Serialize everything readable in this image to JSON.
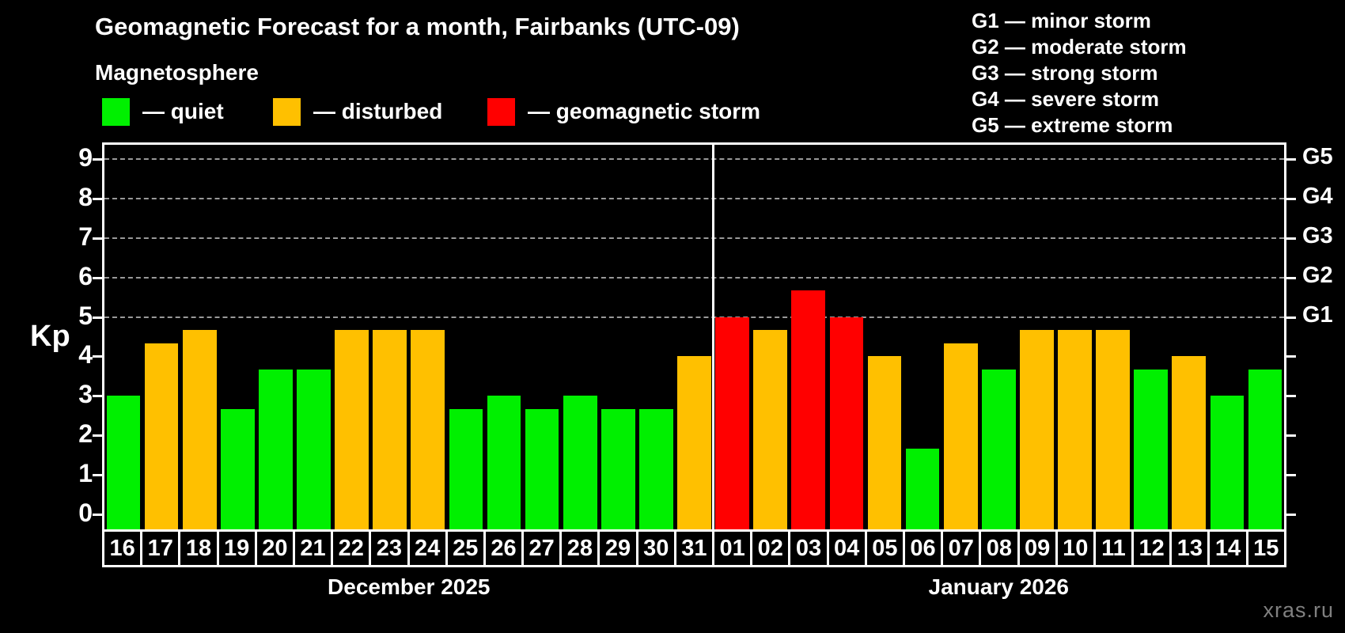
{
  "title": "Geomagnetic Forecast for a month, Fairbanks (UTC-09)",
  "subtitle": "Magnetosphere",
  "legend": {
    "items": [
      {
        "color_key": "quiet",
        "label": "— quiet"
      },
      {
        "color_key": "disturbed",
        "label": "— disturbed"
      },
      {
        "color_key": "storm",
        "label": "— geomagnetic storm"
      }
    ]
  },
  "g_legend": {
    "lines": [
      "G1 — minor storm",
      "G2 — moderate storm",
      "G3 — strong storm",
      "G4 — severe storm",
      "G5 — extreme storm"
    ]
  },
  "watermark": "xras.ru",
  "colors": {
    "quiet": "#00f000",
    "disturbed": "#ffc000",
    "storm": "#ff0000",
    "axis": "#ffffff",
    "gridline": "#999999",
    "background": "#000000"
  },
  "chart_data": {
    "type": "bar",
    "title": "Geomagnetic Forecast for a month, Fairbanks (UTC-09)",
    "ylabel": "Kp",
    "ylim": [
      0,
      9
    ],
    "y_ticks": [
      0,
      1,
      2,
      3,
      4,
      5,
      6,
      7,
      8,
      9
    ],
    "gridlines_at": [
      5,
      6,
      7,
      8,
      9
    ],
    "grid": "dashed horizontal lines at storm levels G1–G5",
    "legend_position": "top",
    "right_axis": [
      {
        "kp": 5,
        "label": "G1"
      },
      {
        "kp": 6,
        "label": "G2"
      },
      {
        "kp": 7,
        "label": "G3"
      },
      {
        "kp": 8,
        "label": "G4"
      },
      {
        "kp": 9,
        "label": "G5"
      }
    ],
    "months": [
      {
        "label": "December 2025",
        "days": [
          {
            "day": "16",
            "kp": 3.0,
            "status": "quiet"
          },
          {
            "day": "17",
            "kp": 4.33,
            "status": "disturbed"
          },
          {
            "day": "18",
            "kp": 4.67,
            "status": "disturbed"
          },
          {
            "day": "19",
            "kp": 2.67,
            "status": "quiet"
          },
          {
            "day": "20",
            "kp": 3.67,
            "status": "quiet"
          },
          {
            "day": "21",
            "kp": 3.67,
            "status": "quiet"
          },
          {
            "day": "22",
            "kp": 4.67,
            "status": "disturbed"
          },
          {
            "day": "23",
            "kp": 4.67,
            "status": "disturbed"
          },
          {
            "day": "24",
            "kp": 4.67,
            "status": "disturbed"
          },
          {
            "day": "25",
            "kp": 2.67,
            "status": "quiet"
          },
          {
            "day": "26",
            "kp": 3.0,
            "status": "quiet"
          },
          {
            "day": "27",
            "kp": 2.67,
            "status": "quiet"
          },
          {
            "day": "28",
            "kp": 3.0,
            "status": "quiet"
          },
          {
            "day": "29",
            "kp": 2.67,
            "status": "quiet"
          },
          {
            "day": "30",
            "kp": 2.67,
            "status": "quiet"
          },
          {
            "day": "31",
            "kp": 4.0,
            "status": "disturbed"
          }
        ]
      },
      {
        "label": "January 2026",
        "days": [
          {
            "day": "01",
            "kp": 5.0,
            "status": "storm"
          },
          {
            "day": "02",
            "kp": 4.67,
            "status": "disturbed"
          },
          {
            "day": "03",
            "kp": 5.67,
            "status": "storm"
          },
          {
            "day": "04",
            "kp": 5.0,
            "status": "storm"
          },
          {
            "day": "05",
            "kp": 4.0,
            "status": "disturbed"
          },
          {
            "day": "06",
            "kp": 1.67,
            "status": "quiet"
          },
          {
            "day": "07",
            "kp": 4.33,
            "status": "disturbed"
          },
          {
            "day": "08",
            "kp": 3.67,
            "status": "quiet"
          },
          {
            "day": "09",
            "kp": 4.67,
            "status": "disturbed"
          },
          {
            "day": "10",
            "kp": 4.67,
            "status": "disturbed"
          },
          {
            "day": "11",
            "kp": 4.67,
            "status": "disturbed"
          },
          {
            "day": "12",
            "kp": 3.67,
            "status": "quiet"
          },
          {
            "day": "13",
            "kp": 4.0,
            "status": "disturbed"
          },
          {
            "day": "14",
            "kp": 3.0,
            "status": "quiet"
          },
          {
            "day": "15",
            "kp": 3.67,
            "status": "quiet"
          }
        ]
      }
    ]
  }
}
